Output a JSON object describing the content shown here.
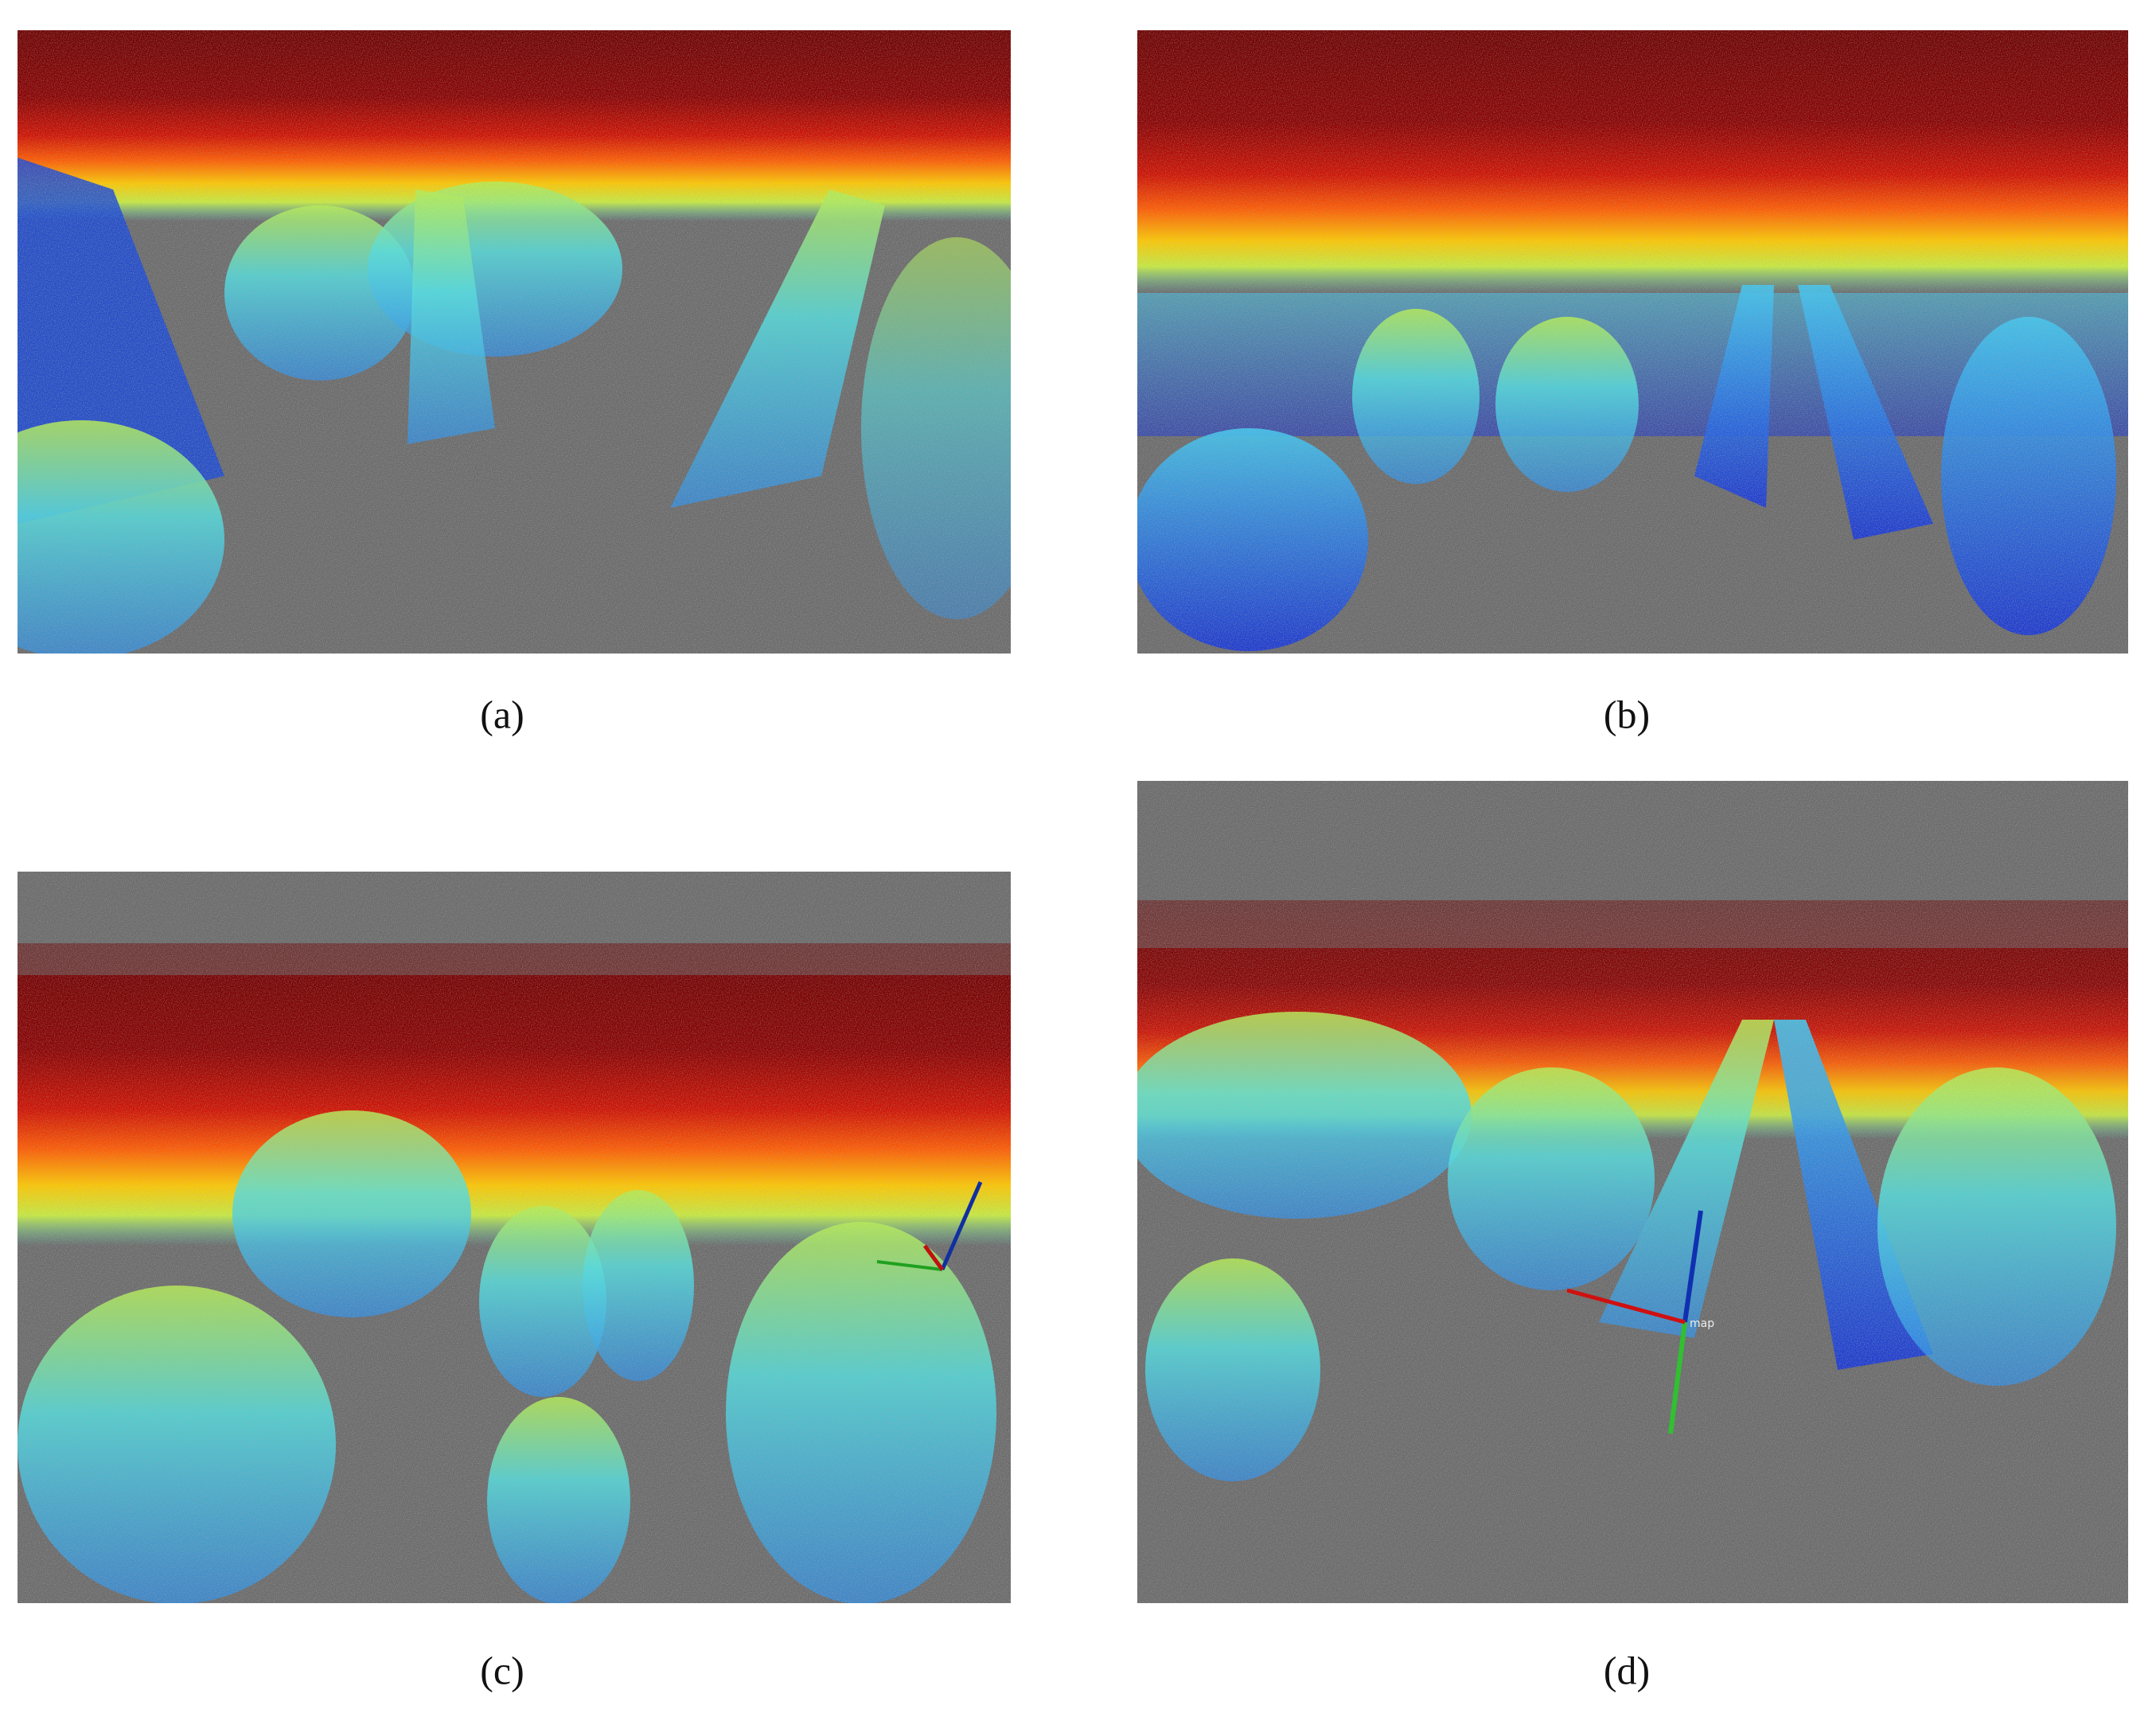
{
  "panels": [
    {
      "label": "(a)"
    },
    {
      "label": "(b)"
    },
    {
      "label": "(c)"
    },
    {
      "label": "(d)",
      "annotation": "map"
    }
  ]
}
